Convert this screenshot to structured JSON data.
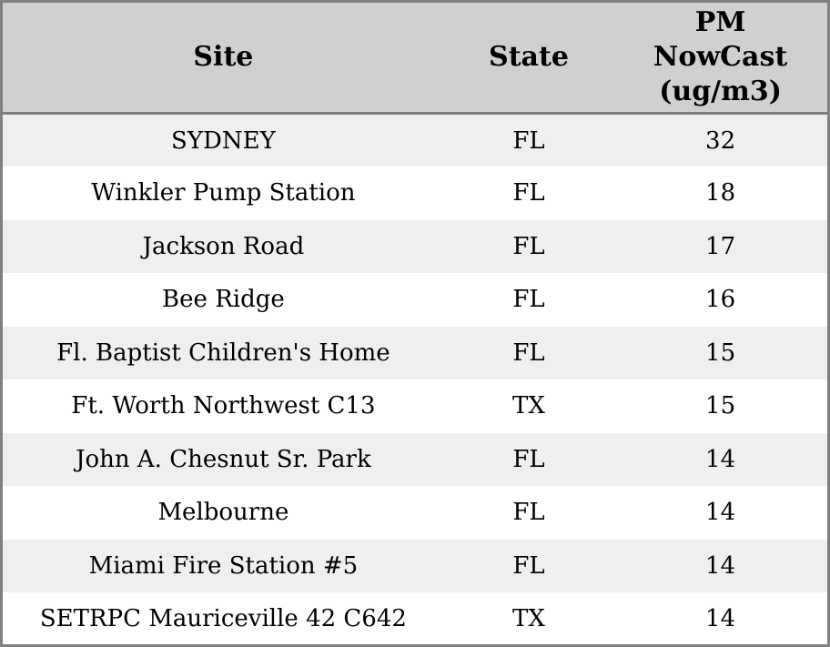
{
  "chart_data": {
    "type": "table",
    "title": "",
    "columns": [
      {
        "id": "site",
        "label": "Site"
      },
      {
        "id": "state",
        "label": "State"
      },
      {
        "id": "pm_nowcast",
        "label": "PM\nNowCast\n(ug/m3)"
      }
    ],
    "rows": [
      {
        "site": "SYDNEY",
        "state": "FL",
        "pm_nowcast": "32"
      },
      {
        "site": "Winkler Pump Station",
        "state": "FL",
        "pm_nowcast": "18"
      },
      {
        "site": "Jackson Road",
        "state": "FL",
        "pm_nowcast": "17"
      },
      {
        "site": "Bee Ridge",
        "state": "FL",
        "pm_nowcast": "16"
      },
      {
        "site": "Fl. Baptist Children's Home",
        "state": "FL",
        "pm_nowcast": "15"
      },
      {
        "site": "Ft. Worth Northwest C13",
        "state": "TX",
        "pm_nowcast": "15"
      },
      {
        "site": "John A. Chesnut Sr. Park",
        "state": "FL",
        "pm_nowcast": "14"
      },
      {
        "site": "Melbourne",
        "state": "FL",
        "pm_nowcast": "14"
      },
      {
        "site": "Miami Fire Station #5",
        "state": "FL",
        "pm_nowcast": "14"
      },
      {
        "site": "SETRPC Mauriceville 42 C642",
        "state": "TX",
        "pm_nowcast": "14"
      }
    ]
  },
  "colors": {
    "header_bg": "#d0d0d0",
    "row_alt_bg": "#efefef",
    "row_bg": "#ffffff",
    "border": "#808080",
    "text": "#000000"
  }
}
